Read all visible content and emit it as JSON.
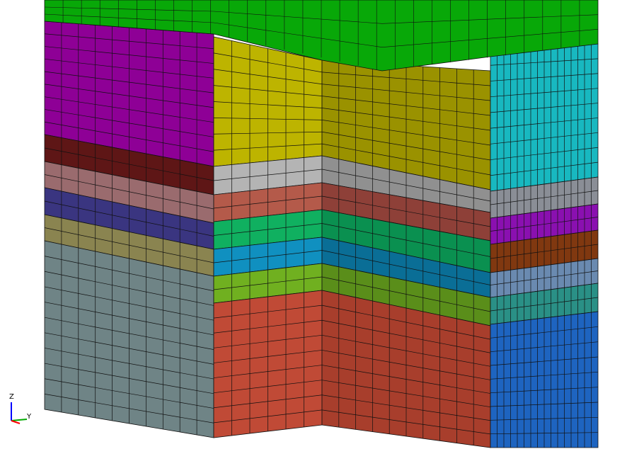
{
  "axis_triad": {
    "z_label": "Z",
    "y_label": "Y"
  }
}
